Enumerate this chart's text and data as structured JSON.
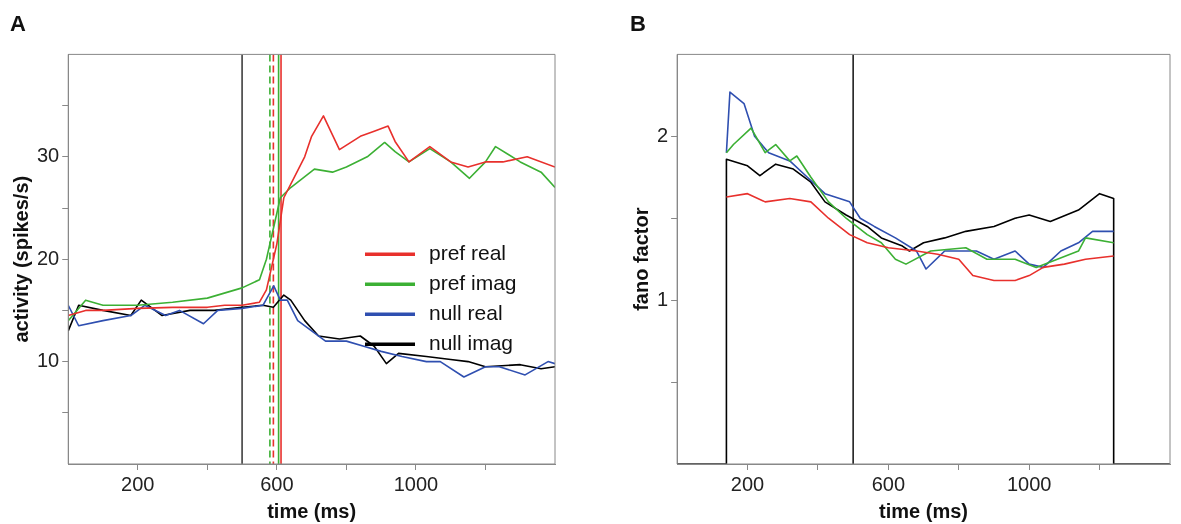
{
  "chart_data": [
    {
      "type": "line",
      "title": "A",
      "xlabel": "time (ms)",
      "ylabel": "activity (spikes/s)",
      "xlim": [
        0,
        1400
      ],
      "xticks": [
        {
          "value": 200,
          "label": "200"
        },
        {
          "value": 400,
          "label": null
        },
        {
          "value": 600,
          "label": "600"
        },
        {
          "value": 800,
          "label": null
        },
        {
          "value": 1000,
          "label": "1000"
        },
        {
          "value": 1200,
          "label": null
        }
      ],
      "ylim": [
        0,
        40
      ],
      "yticks": [
        {
          "value": 5,
          "label": null
        },
        10,
        {
          "value": 15,
          "label": null
        },
        20,
        {
          "value": 25,
          "label": null
        },
        30,
        {
          "value": 35,
          "label": null
        }
      ],
      "grid": false,
      "legend": "right",
      "marker": "none",
      "series": [
        {
          "name": "pref real",
          "color": "#e8302c",
          "x": [
            0,
            50,
            100,
            200,
            300,
            400,
            450,
            500,
            550,
            570,
            600,
            620,
            650,
            680,
            700,
            734,
            780,
            840,
            880,
            920,
            940,
            980,
            1040,
            1100,
            1150,
            1200,
            1250,
            1320,
            1400
          ],
          "values": [
            14.5,
            15,
            15,
            15.2,
            15.3,
            15.3,
            15.5,
            15.5,
            15.8,
            17,
            21.5,
            26,
            28,
            30,
            32,
            34,
            30.7,
            32,
            32.5,
            33,
            31.5,
            29.5,
            31,
            29.5,
            29,
            29.5,
            29.5,
            30,
            29
          ]
        },
        {
          "name": "pref imag",
          "color": "#3cb034",
          "x": [
            0,
            50,
            100,
            200,
            300,
            400,
            500,
            550,
            570,
            590,
            610,
            640,
            708,
            760,
            800,
            860,
            910,
            940,
            980,
            1040,
            1100,
            1154,
            1200,
            1229,
            1300,
            1360,
            1400
          ],
          "values": [
            14,
            16,
            15.5,
            15.5,
            15.8,
            16.2,
            17.2,
            18,
            20,
            23,
            26,
            27,
            28.8,
            28.5,
            29,
            30,
            31.4,
            30.5,
            29.5,
            30.8,
            29.5,
            27.9,
            29.5,
            31,
            29.5,
            28.5,
            27
          ]
        },
        {
          "name": "null real",
          "color": "#2f4fb0",
          "x": [
            0,
            30,
            100,
            180,
            220,
            280,
            320,
            389,
            430,
            500,
            560,
            591,
            610,
            630,
            660,
            700,
            740,
            800,
            850,
            900,
            960,
            1030,
            1070,
            1138,
            1200,
            1240,
            1314,
            1380,
            1400
          ],
          "values": [
            15.5,
            13.5,
            14,
            14.5,
            15.5,
            14.5,
            15,
            13.7,
            15,
            15.2,
            15.5,
            17.4,
            16,
            16,
            14,
            13,
            12,
            12,
            11.5,
            11,
            10.5,
            10,
            10,
            8.5,
            9.5,
            9.5,
            8.7,
            10,
            9.8
          ]
        },
        {
          "name": "null imag",
          "color": "#000000",
          "x": [
            0,
            30,
            100,
            180,
            210,
            270,
            350,
            420,
            500,
            560,
            590,
            620,
            640,
            680,
            720,
            780,
            840,
            880,
            915,
            950,
            1030,
            1100,
            1150,
            1200,
            1300,
            1360,
            1400
          ],
          "values": [
            13,
            15.5,
            15,
            14.5,
            16,
            14.5,
            15,
            15,
            15.3,
            15.5,
            15.3,
            16.5,
            16,
            14,
            12.5,
            12.2,
            12.5,
            11.5,
            9.8,
            10.8,
            10.5,
            10.2,
            10,
            9.5,
            9.7,
            9.3,
            9.5
          ]
        }
      ],
      "ref_lines": [
        {
          "axis": "x",
          "value": 500,
          "color": "#404040",
          "line_style": "solid"
        },
        {
          "axis": "x",
          "value": 580,
          "color": "#3cb034",
          "line_style": "dashed"
        },
        {
          "axis": "x",
          "value": 590,
          "color": "#e8302c",
          "line_style": "dashed"
        },
        {
          "axis": "x",
          "value": 605,
          "color": "#3cb034",
          "line_style": "solid"
        },
        {
          "axis": "x",
          "value": 612,
          "color": "#e8302c",
          "line_style": "solid"
        }
      ]
    },
    {
      "type": "line",
      "title": "B",
      "xlabel": "time (ms)",
      "ylabel": "fano factor",
      "xlim": [
        0,
        1400
      ],
      "xticks": [
        {
          "value": 200,
          "label": "200"
        },
        {
          "value": 400,
          "label": null
        },
        {
          "value": 600,
          "label": "600"
        },
        {
          "value": 800,
          "label": null
        },
        {
          "value": 1000,
          "label": "1000"
        },
        {
          "value": 1200,
          "label": null
        }
      ],
      "ylim": [
        0,
        2.5
      ],
      "yticks": [
        {
          "value": 0.5,
          "label": null
        },
        1,
        {
          "value": 1.5,
          "label": null
        },
        2
      ],
      "grid": false,
      "legend": false,
      "marker": "none",
      "series": [
        {
          "color": "#e8302c",
          "x": [
            140,
            200,
            250,
            320,
            380,
            430,
            490,
            540,
            600,
            680,
            740,
            800,
            840,
            900,
            960,
            1000,
            1040,
            1100,
            1160,
            1240
          ],
          "values": [
            1.63,
            1.65,
            1.6,
            1.62,
            1.6,
            1.5,
            1.4,
            1.35,
            1.32,
            1.3,
            1.28,
            1.25,
            1.15,
            1.12,
            1.12,
            1.15,
            1.2,
            1.22,
            1.25,
            1.27
          ]
        },
        {
          "color": "#3cb034",
          "x": [
            140,
            160,
            210,
            250,
            280,
            320,
            340,
            380,
            430,
            480,
            540,
            580,
            620,
            650,
            720,
            820,
            880,
            960,
            1020,
            1080,
            1140,
            1160,
            1240
          ],
          "values": [
            1.9,
            1.95,
            2.05,
            1.9,
            1.95,
            1.85,
            1.88,
            1.75,
            1.6,
            1.5,
            1.4,
            1.35,
            1.25,
            1.22,
            1.3,
            1.32,
            1.25,
            1.25,
            1.2,
            1.25,
            1.3,
            1.38,
            1.35
          ]
        },
        {
          "color": "#2f4fb0",
          "x": [
            140,
            150,
            190,
            220,
            260,
            320,
            370,
            420,
            490,
            520,
            560,
            620,
            680,
            707,
            760,
            850,
            900,
            960,
            1000,
            1040,
            1090,
            1140,
            1180,
            1240
          ],
          "values": [
            1.9,
            2.27,
            2.2,
            2,
            1.9,
            1.85,
            1.75,
            1.65,
            1.6,
            1.5,
            1.45,
            1.38,
            1.3,
            1.19,
            1.3,
            1.3,
            1.25,
            1.3,
            1.22,
            1.2,
            1.3,
            1.35,
            1.42,
            1.42
          ]
        },
        {
          "color": "#000000",
          "x": [
            0,
            140,
            140,
            200,
            235,
            280,
            330,
            380,
            420,
            480,
            540,
            580,
            640,
            660,
            700,
            760,
            820,
            900,
            960,
            1000,
            1060,
            1140,
            1200,
            1240,
            1240,
            1400
          ],
          "values": [
            0,
            0,
            1.86,
            1.82,
            1.76,
            1.83,
            1.8,
            1.72,
            1.6,
            1.52,
            1.45,
            1.38,
            1.33,
            1.3,
            1.35,
            1.38,
            1.42,
            1.45,
            1.5,
            1.52,
            1.48,
            1.55,
            1.65,
            1.62,
            0,
            0
          ]
        }
      ],
      "ref_lines": [
        {
          "axis": "x",
          "value": 500,
          "color": "#202020",
          "line_style": "solid"
        }
      ]
    }
  ]
}
